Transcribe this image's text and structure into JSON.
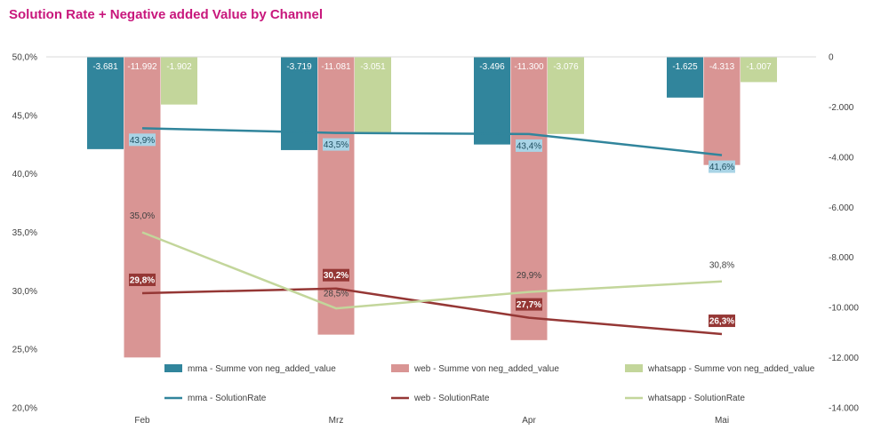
{
  "chart_data": {
    "type": "bar",
    "title": "Solution Rate + Negative added Value by Channel",
    "categories": [
      "Feb",
      "Mrz",
      "Apr",
      "Mai"
    ],
    "y_left": {
      "ylim": [
        20,
        50
      ],
      "ticks": [
        "20,0%",
        "25,0%",
        "30,0%",
        "35,0%",
        "40,0%",
        "45,0%",
        "50,0%"
      ]
    },
    "y_right": {
      "ylim": [
        -14000,
        0
      ],
      "ticks": [
        "-14.000",
        "-12.000",
        "-10.000",
        "-8.000",
        "-6.000",
        "-4.000",
        "-2.000",
        "0"
      ]
    },
    "bar_series": [
      {
        "name": "mma - Summe von neg_added_value",
        "values": [
          -3681,
          -3719,
          -3496,
          -1625
        ],
        "labels": [
          "-3.681",
          "-3.719",
          "-3.496",
          "-1.625"
        ],
        "color": "#31859c"
      },
      {
        "name": "web - Summe von neg_added_value",
        "values": [
          -11992,
          -11081,
          -11300,
          -4313
        ],
        "labels": [
          "-11.992",
          "-11.081",
          "-11.300",
          "-4.313"
        ],
        "color": "#d99594"
      },
      {
        "name": "whatsapp - Summe von neg_added_value",
        "values": [
          -1902,
          -3051,
          -3076,
          -1007
        ],
        "labels": [
          "-1.902",
          "-3.051",
          "-3.076",
          "-1.007"
        ],
        "color": "#c3d69b"
      }
    ],
    "line_series": [
      {
        "name": "mma - SolutionRate",
        "values": [
          43.9,
          43.5,
          43.4,
          41.6
        ],
        "labels": [
          "43,9%",
          "43,5%",
          "43,4%",
          "41,6%"
        ],
        "color": "#31859c"
      },
      {
        "name": "web - SolutionRate",
        "values": [
          29.8,
          30.2,
          27.7,
          26.3
        ],
        "labels": [
          "29,8%",
          "30,2%",
          "27,7%",
          "26,3%"
        ],
        "color": "#953735"
      },
      {
        "name": "whatsapp - SolutionRate",
        "values": [
          35.0,
          28.5,
          29.9,
          30.8
        ],
        "labels": [
          "35,0%",
          "28,5%",
          "29,9%",
          "30,8%"
        ],
        "color": "#c3d69b"
      }
    ],
    "legend": "bottom"
  }
}
